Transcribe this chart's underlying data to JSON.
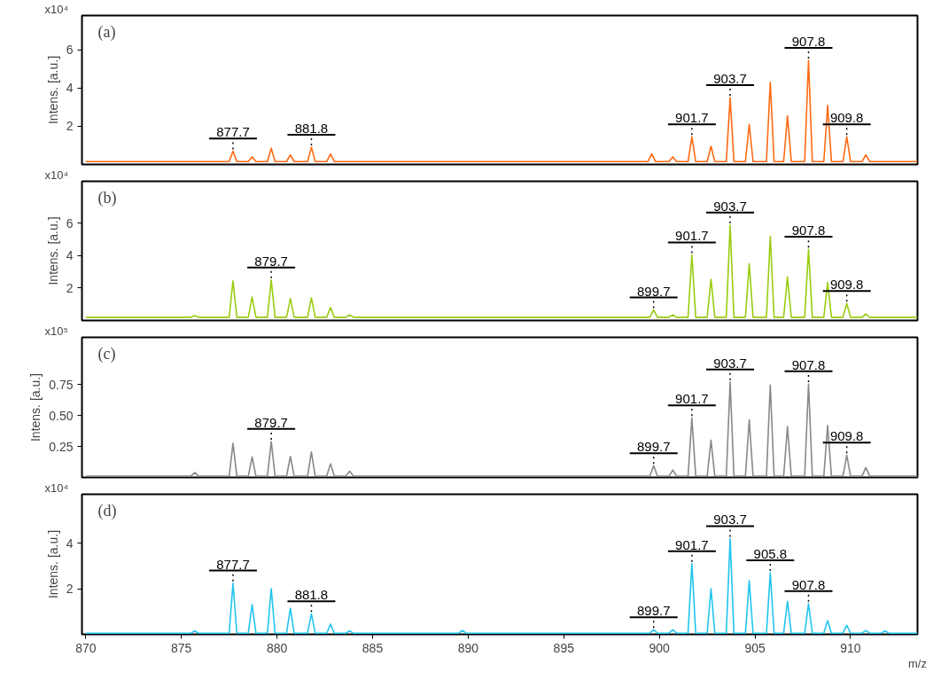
{
  "chart_data": [
    {
      "type": "line",
      "ylabel": "Intens. [a.u.]",
      "xlim": [
        869.8,
        913.5
      ],
      "ylim": [
        0,
        7.8
      ],
      "yticks": [
        2,
        4,
        6
      ],
      "tick_labels": "y",
      "grid": false,
      "annotations": [
        "(a)",
        "x10⁴",
        {
          "text": "877.7",
          "x": 877.7,
          "y": 0.7
        },
        {
          "text": "881.8",
          "x": 881.8,
          "y": 0.9
        },
        {
          "text": "901.7",
          "x": 901.7,
          "y": 1.45
        },
        {
          "text": "903.7",
          "x": 903.7,
          "y": 3.5
        },
        {
          "text": "907.8",
          "x": 907.8,
          "y": 5.45
        },
        {
          "text": "909.8",
          "x": 909.8,
          "y": 1.45
        }
      ],
      "series": [
        {
          "color": "#ff6a13",
          "x": [
            870,
            877.5,
            877.7,
            877.9,
            878.5,
            878.7,
            878.9,
            879.5,
            879.7,
            879.9,
            880.5,
            880.7,
            880.9,
            881.6,
            881.8,
            882.0,
            882.6,
            882.8,
            883.0,
            899.4,
            899.6,
            899.8,
            900.5,
            900.7,
            900.9,
            901.5,
            901.7,
            901.9,
            902.5,
            902.7,
            902.9,
            903.5,
            903.7,
            903.9,
            904.5,
            904.7,
            904.9,
            905.6,
            905.8,
            906.0,
            906.5,
            906.7,
            906.9,
            907.6,
            907.8,
            908.0,
            908.6,
            908.8,
            909.0,
            909.6,
            909.8,
            910.0,
            910.6,
            910.8,
            911.0,
            913.5
          ],
          "values": [
            0.15,
            0.15,
            0.7,
            0.15,
            0.15,
            0.4,
            0.15,
            0.15,
            0.85,
            0.15,
            0.15,
            0.5,
            0.15,
            0.15,
            0.9,
            0.15,
            0.15,
            0.55,
            0.15,
            0.15,
            0.55,
            0.15,
            0.15,
            0.4,
            0.15,
            0.15,
            1.45,
            0.15,
            0.15,
            0.95,
            0.15,
            0.15,
            3.5,
            0.15,
            0.15,
            2.1,
            0.15,
            0.15,
            4.3,
            0.15,
            0.15,
            2.55,
            0.15,
            0.15,
            5.45,
            0.15,
            0.15,
            3.1,
            0.15,
            0.15,
            1.45,
            0.15,
            0.15,
            0.5,
            0.15,
            0.15
          ]
        }
      ]
    },
    {
      "type": "line",
      "ylabel": "Intens. [a.u.]",
      "xlim": [
        869.8,
        913.5
      ],
      "ylim": [
        0,
        8.6
      ],
      "yticks": [
        2,
        4,
        6
      ],
      "tick_labels": "y",
      "grid": false,
      "annotations": [
        "(b)",
        "x10⁴",
        {
          "text": "879.7",
          "x": 879.7,
          "y": 2.5
        },
        {
          "text": "899.7",
          "x": 899.7,
          "y": 0.65
        },
        {
          "text": "901.7",
          "x": 901.7,
          "y": 4.05
        },
        {
          "text": "903.7",
          "x": 903.7,
          "y": 5.9
        },
        {
          "text": "907.8",
          "x": 907.8,
          "y": 4.4
        },
        {
          "text": "909.8",
          "x": 909.8,
          "y": 1.05
        }
      ],
      "series": [
        {
          "color": "#99cc11",
          "x": [
            870,
            875.5,
            875.7,
            875.9,
            877.5,
            877.7,
            877.9,
            878.5,
            878.7,
            878.9,
            879.5,
            879.7,
            879.9,
            880.5,
            880.7,
            880.9,
            881.6,
            881.8,
            882.0,
            882.6,
            882.8,
            883.0,
            883.6,
            883.8,
            884.0,
            899.5,
            899.7,
            899.9,
            900.5,
            900.7,
            900.9,
            901.5,
            901.7,
            901.9,
            902.5,
            902.7,
            902.9,
            903.5,
            903.7,
            903.9,
            904.5,
            904.7,
            904.9,
            905.6,
            905.8,
            906.0,
            906.5,
            906.7,
            906.9,
            907.6,
            907.8,
            908.0,
            908.6,
            908.8,
            909.0,
            909.6,
            909.8,
            910.0,
            910.6,
            910.8,
            911.0,
            913.5
          ],
          "values": [
            0.2,
            0.2,
            0.3,
            0.2,
            0.2,
            2.45,
            0.2,
            0.2,
            1.45,
            0.2,
            0.2,
            2.5,
            0.2,
            0.2,
            1.35,
            0.2,
            0.2,
            1.4,
            0.2,
            0.2,
            0.8,
            0.2,
            0.2,
            0.35,
            0.2,
            0.2,
            0.65,
            0.2,
            0.2,
            0.35,
            0.2,
            0.2,
            4.05,
            0.2,
            0.2,
            2.55,
            0.2,
            0.2,
            5.9,
            0.2,
            0.2,
            3.5,
            0.2,
            0.2,
            5.2,
            0.2,
            0.2,
            2.7,
            0.2,
            0.2,
            4.4,
            0.2,
            0.2,
            2.35,
            0.2,
            0.2,
            1.05,
            0.2,
            0.2,
            0.4,
            0.2,
            0.2
          ]
        }
      ]
    },
    {
      "type": "line",
      "ylabel": "Intens. [a.u.]",
      "xlim": [
        869.8,
        913.5
      ],
      "ylim": [
        0,
        1.13
      ],
      "yticks": [
        0.25,
        {
          "value": 0.5,
          "label": "0.50"
        },
        0.75
      ],
      "tick_labels": "y",
      "grid": false,
      "annotations": [
        "(c)",
        "x10⁵",
        {
          "text": "879.7",
          "x": 879.7,
          "y": 0.29
        },
        {
          "text": "899.7",
          "x": 899.7,
          "y": 0.095
        },
        {
          "text": "901.7",
          "x": 901.7,
          "y": 0.48
        },
        {
          "text": "903.7",
          "x": 903.7,
          "y": 0.77
        },
        {
          "text": "907.8",
          "x": 907.8,
          "y": 0.755
        },
        {
          "text": "909.8",
          "x": 909.8,
          "y": 0.18
        }
      ],
      "series": [
        {
          "color": "#888888",
          "x": [
            870,
            875.5,
            875.7,
            875.9,
            877.5,
            877.7,
            877.9,
            878.5,
            878.7,
            878.9,
            879.5,
            879.7,
            879.9,
            880.5,
            880.7,
            880.9,
            881.6,
            881.8,
            882.0,
            882.6,
            882.8,
            883.0,
            883.6,
            883.8,
            884.0,
            899.5,
            899.7,
            899.9,
            900.5,
            900.7,
            900.9,
            901.5,
            901.7,
            901.9,
            902.5,
            902.7,
            902.9,
            903.5,
            903.7,
            903.9,
            904.5,
            904.7,
            904.9,
            905.6,
            905.8,
            906.0,
            906.5,
            906.7,
            906.9,
            907.6,
            907.8,
            908.0,
            908.6,
            908.8,
            909.0,
            909.6,
            909.8,
            910.0,
            910.6,
            910.8,
            911.0,
            913.5
          ],
          "values": [
            0.01,
            0.01,
            0.04,
            0.01,
            0.01,
            0.275,
            0.01,
            0.01,
            0.165,
            0.01,
            0.01,
            0.29,
            0.01,
            0.01,
            0.17,
            0.01,
            0.01,
            0.205,
            0.01,
            0.01,
            0.11,
            0.01,
            0.01,
            0.05,
            0.01,
            0.01,
            0.095,
            0.01,
            0.01,
            0.06,
            0.01,
            0.01,
            0.48,
            0.01,
            0.01,
            0.3,
            0.01,
            0.01,
            0.77,
            0.01,
            0.01,
            0.465,
            0.01,
            0.01,
            0.745,
            0.01,
            0.01,
            0.41,
            0.01,
            0.01,
            0.755,
            0.01,
            0.01,
            0.42,
            0.01,
            0.01,
            0.18,
            0.01,
            0.01,
            0.08,
            0.01,
            0.01
          ]
        }
      ]
    },
    {
      "type": "line",
      "ylabel": "Intens. [a.u.]",
      "xlabel": "m/z",
      "xlim": [
        869.8,
        913.5
      ],
      "xticks": [
        870,
        875,
        880,
        885,
        890,
        895,
        900,
        905,
        910
      ],
      "ylim": [
        0,
        6.15
      ],
      "yticks": [
        2,
        4
      ],
      "grid": false,
      "annotations": [
        "(d)",
        "x10⁴",
        {
          "text": "877.7",
          "x": 877.7,
          "y": 2.25
        },
        {
          "text": "881.8",
          "x": 881.8,
          "y": 0.9
        },
        {
          "text": "899.7",
          "x": 899.7,
          "y": 0.2
        },
        {
          "text": "901.7",
          "x": 901.7,
          "y": 3.1
        },
        {
          "text": "903.7",
          "x": 903.7,
          "y": 4.2
        },
        {
          "text": "905.8",
          "x": 905.8,
          "y": 2.7
        },
        {
          "text": "907.8",
          "x": 907.8,
          "y": 1.35
        }
      ],
      "series": [
        {
          "color": "#22c4ee",
          "x": [
            870,
            875.5,
            875.7,
            875.9,
            877.5,
            877.7,
            877.9,
            878.5,
            878.7,
            878.9,
            879.5,
            879.7,
            879.9,
            880.5,
            880.7,
            880.9,
            881.6,
            881.8,
            882.0,
            882.6,
            882.8,
            883.0,
            883.6,
            883.8,
            884.0,
            889.5,
            889.7,
            889.9,
            899.5,
            899.7,
            899.9,
            900.5,
            900.7,
            900.9,
            901.5,
            901.7,
            901.9,
            902.5,
            902.7,
            902.9,
            903.5,
            903.7,
            903.9,
            904.5,
            904.7,
            904.9,
            905.6,
            905.8,
            906.0,
            906.5,
            906.7,
            906.9,
            907.6,
            907.8,
            908.0,
            908.6,
            908.8,
            909.0,
            909.6,
            909.8,
            910.0,
            910.6,
            910.8,
            911.0,
            911.6,
            911.8,
            912.0,
            913.5
          ],
          "values": [
            0.05,
            0.05,
            0.15,
            0.05,
            0.05,
            2.25,
            0.05,
            0.05,
            1.3,
            0.05,
            0.05,
            2.0,
            0.05,
            0.05,
            1.15,
            0.05,
            0.05,
            0.9,
            0.05,
            0.05,
            0.45,
            0.05,
            0.05,
            0.15,
            0.05,
            0.05,
            0.17,
            0.05,
            0.05,
            0.2,
            0.05,
            0.05,
            0.2,
            0.05,
            0.05,
            3.1,
            0.05,
            0.05,
            2.0,
            0.05,
            0.05,
            4.2,
            0.05,
            0.05,
            2.35,
            0.05,
            0.05,
            2.7,
            0.05,
            0.05,
            1.45,
            0.05,
            0.05,
            1.35,
            0.05,
            0.05,
            0.6,
            0.05,
            0.05,
            0.4,
            0.05,
            0.05,
            0.17,
            0.05,
            0.05,
            0.15,
            0.05,
            0.05
          ]
        }
      ]
    }
  ]
}
